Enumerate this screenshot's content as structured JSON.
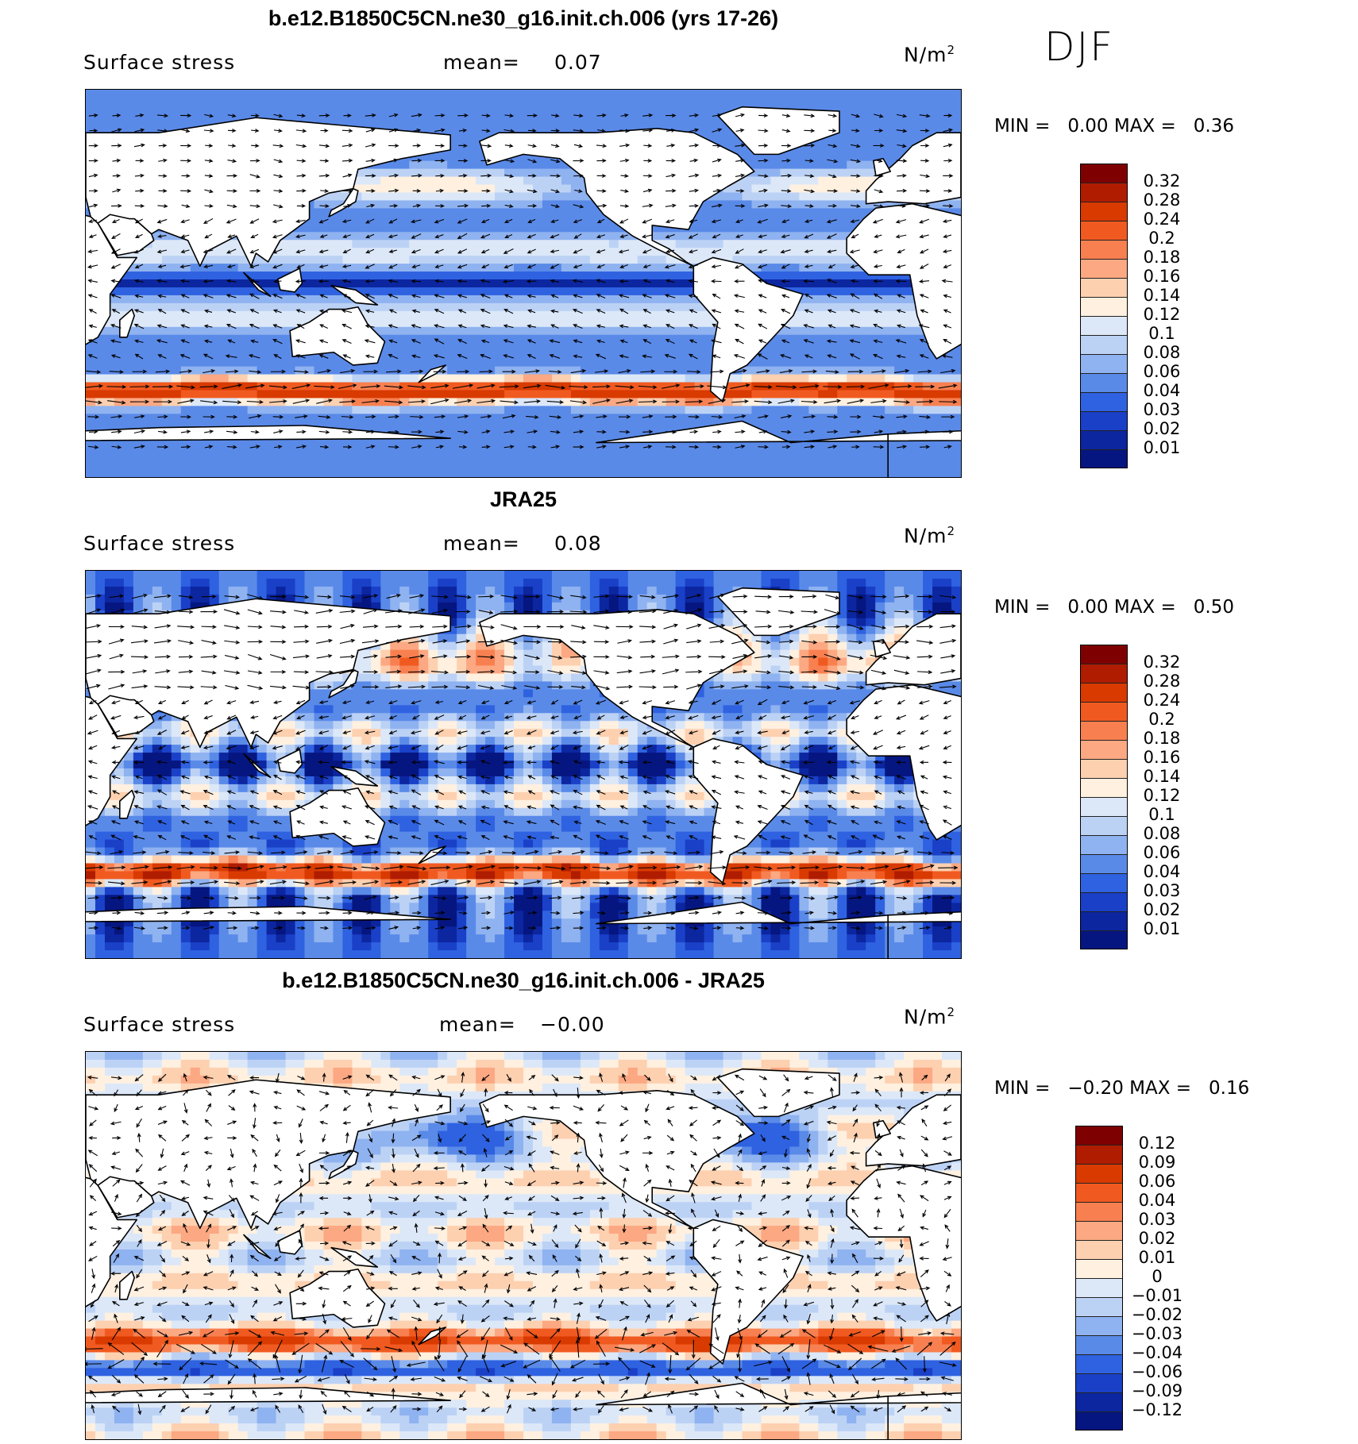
{
  "season": "DJF",
  "colors": {
    "land": "#ffffff",
    "coast": "#000000",
    "arrow": "#000000"
  },
  "panels": [
    {
      "title": "b.e12.B1850C5CN.ne30_g16.init.ch.006 (yrs 17-26)",
      "variable": "Surface stress",
      "mean_label": "mean=",
      "mean_value": "0.07",
      "units_base": "N/m",
      "units_exp": "2",
      "min_label": "MIN =",
      "min_value": "0.00",
      "max_label": "MAX =",
      "max_value": "0.36",
      "colorbar": {
        "labels": [
          "0.32",
          "0.28",
          "0.24",
          "0.2",
          "0.18",
          "0.16",
          "0.14",
          "0.12",
          "0.1",
          "0.08",
          "0.06",
          "0.04",
          "0.03",
          "0.02",
          "0.01"
        ],
        "colors": [
          "#7f0000",
          "#b01c00",
          "#d83a00",
          "#f05a20",
          "#f88050",
          "#fca882",
          "#fdd0b0",
          "#fff0e0",
          "#dce8f8",
          "#bcd2f5",
          "#8fb2f0",
          "#5a8ae8",
          "#2f62e0",
          "#1a40c8",
          "#0c26a0",
          "#061680"
        ]
      }
    },
    {
      "title": "JRA25",
      "variable": "Surface stress",
      "mean_label": "mean=",
      "mean_value": "0.08",
      "units_base": "N/m",
      "units_exp": "2",
      "min_label": "MIN =",
      "min_value": "0.00",
      "max_label": "MAX =",
      "max_value": "0.50",
      "colorbar": {
        "labels": [
          "0.32",
          "0.28",
          "0.24",
          "0.2",
          "0.18",
          "0.16",
          "0.14",
          "0.12",
          "0.1",
          "0.08",
          "0.06",
          "0.04",
          "0.03",
          "0.02",
          "0.01"
        ],
        "colors": [
          "#7f0000",
          "#b01c00",
          "#d83a00",
          "#f05a20",
          "#f88050",
          "#fca882",
          "#fdd0b0",
          "#fff0e0",
          "#dce8f8",
          "#bcd2f5",
          "#8fb2f0",
          "#5a8ae8",
          "#2f62e0",
          "#1a40c8",
          "#0c26a0",
          "#061680"
        ]
      }
    },
    {
      "title": "b.e12.B1850C5CN.ne30_g16.init.ch.006 - JRA25",
      "variable": "Surface stress",
      "mean_label": "mean=",
      "mean_value": "−0.00",
      "units_base": "N/m",
      "units_exp": "2",
      "min_label": "MIN =",
      "min_value": "−0.20",
      "max_label": "MAX =",
      "max_value": "0.16",
      "colorbar": {
        "labels": [
          "0.12",
          "0.09",
          "0.06",
          "0.04",
          "0.03",
          "0.02",
          "0.01",
          "0",
          "−0.01",
          "−0.02",
          "−0.03",
          "−0.04",
          "−0.06",
          "−0.09",
          "−0.12"
        ],
        "colors": [
          "#7f0000",
          "#b01c00",
          "#d83a00",
          "#f05a20",
          "#f88050",
          "#fca882",
          "#fdd0b0",
          "#fff0e0",
          "#dce8f8",
          "#bcd2f5",
          "#8fb2f0",
          "#5a8ae8",
          "#2f62e0",
          "#1a40c8",
          "#0c26a0",
          "#061680"
        ]
      }
    }
  ]
}
